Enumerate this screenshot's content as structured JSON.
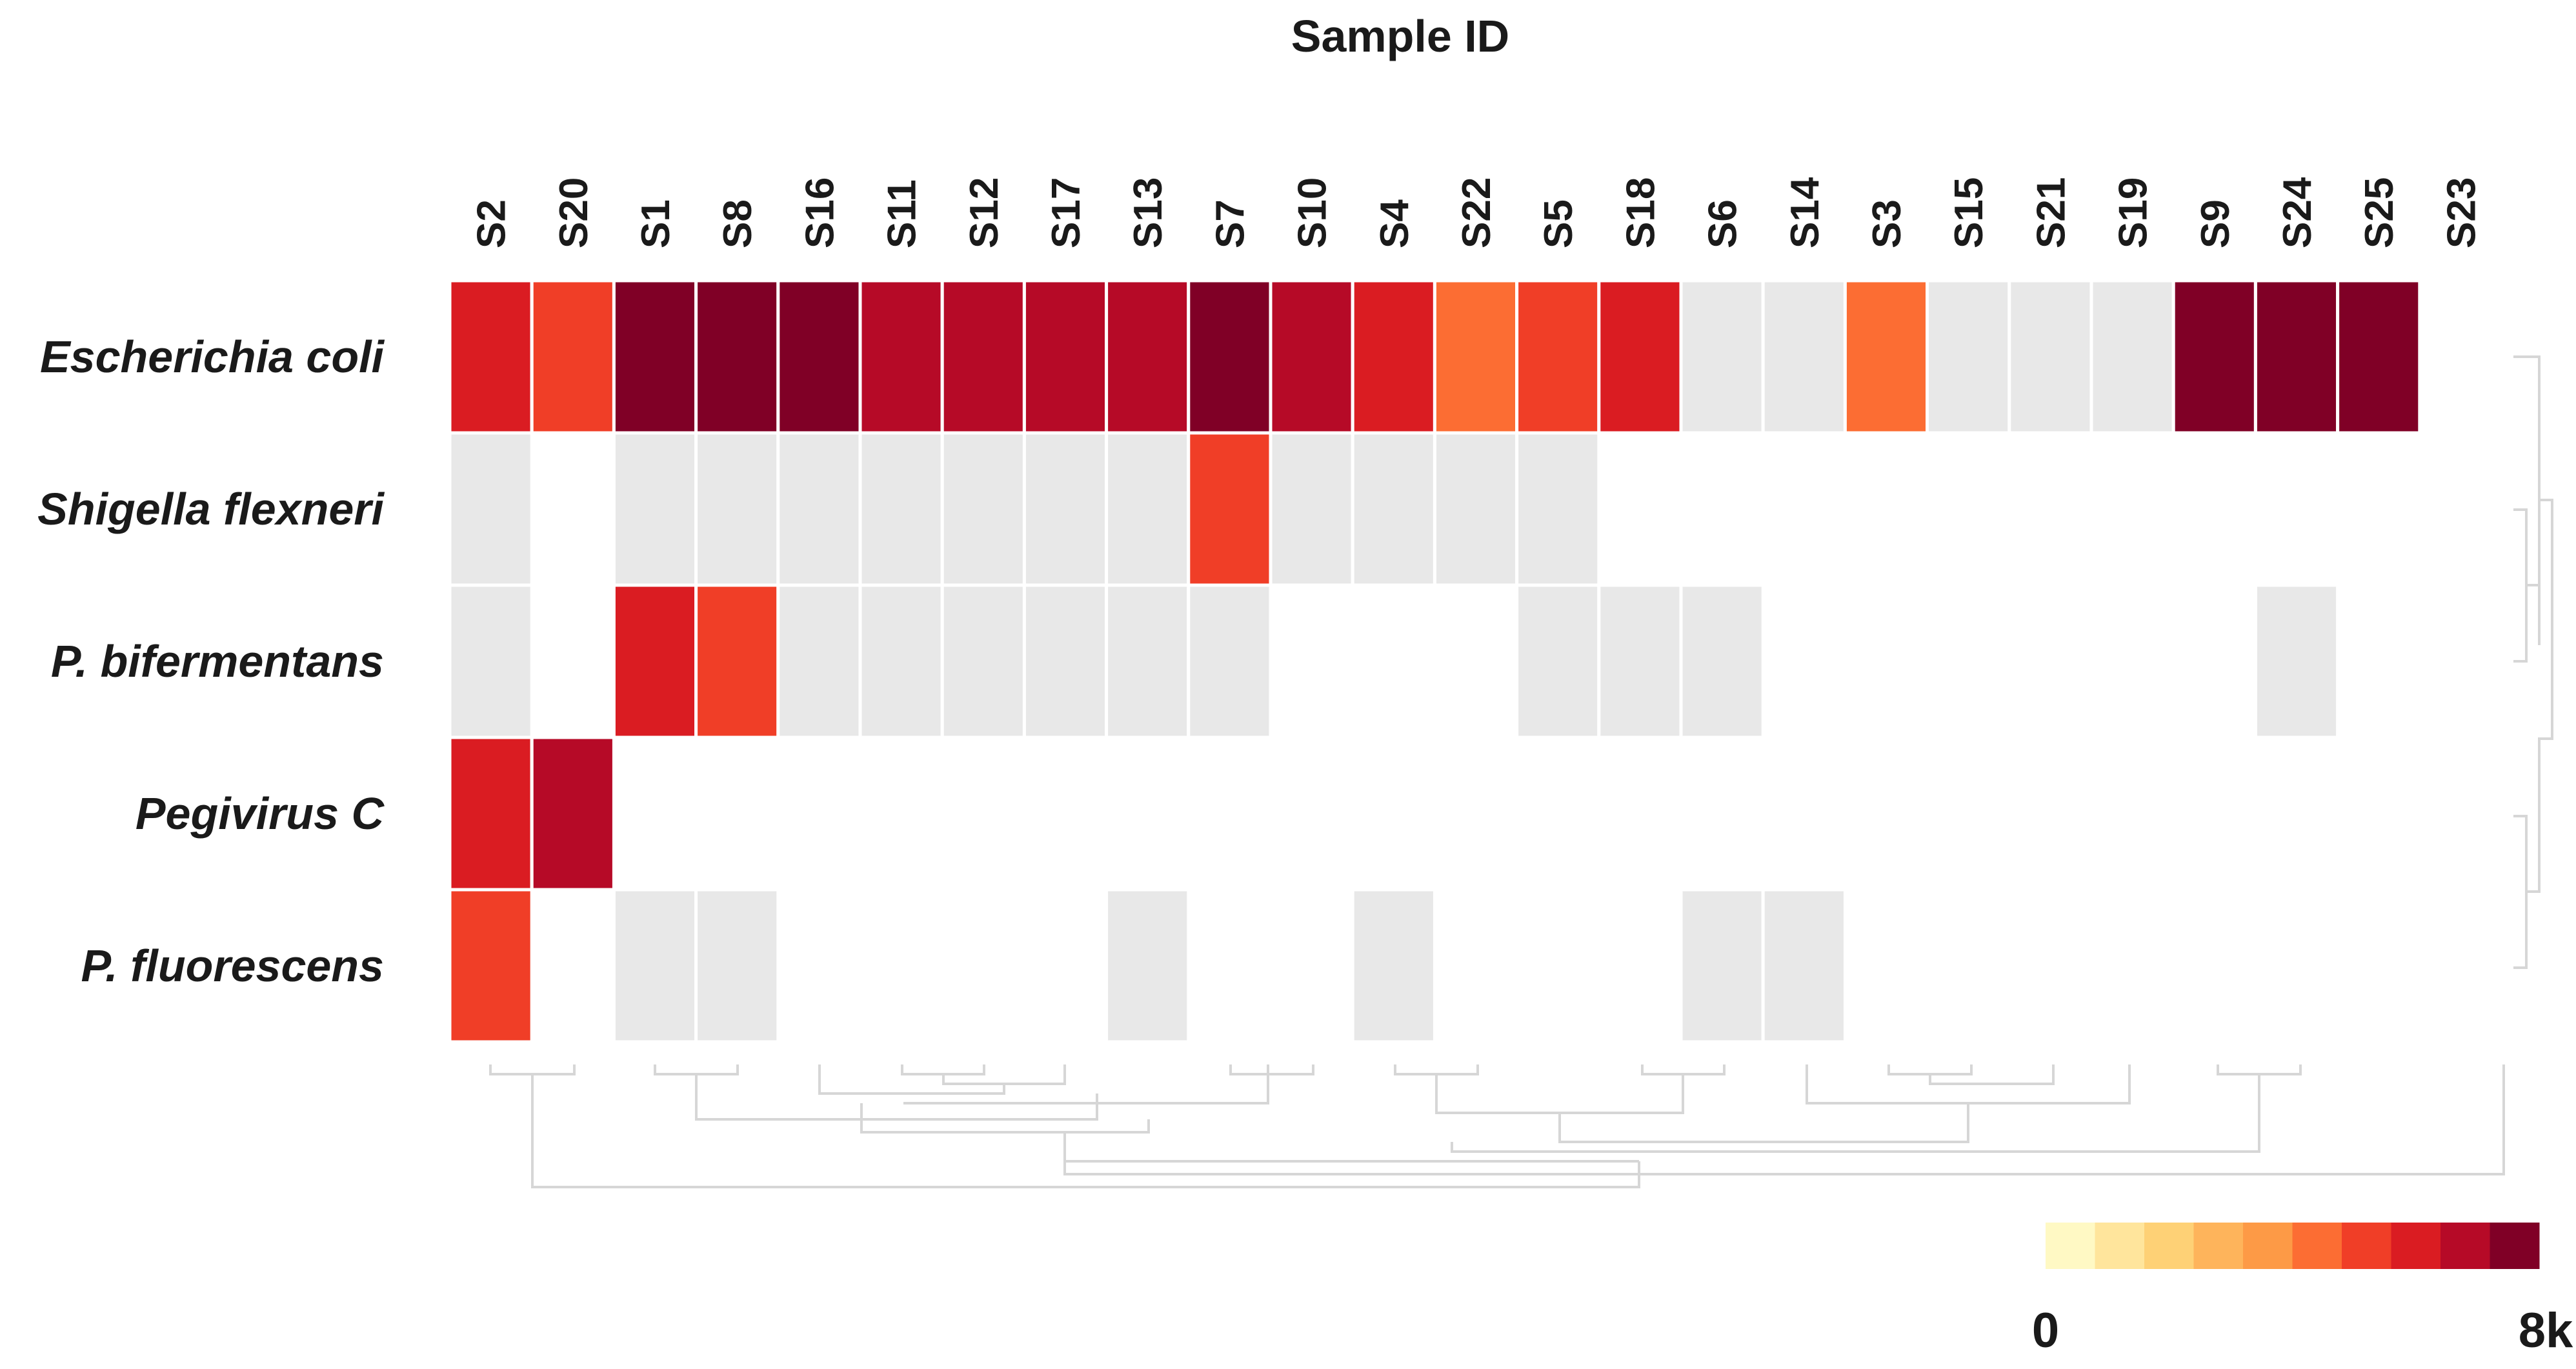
{
  "chart_data": {
    "type": "heatmap",
    "title": "Sample ID",
    "columns": [
      "S2",
      "S20",
      "S1",
      "S8",
      "S16",
      "S11",
      "S12",
      "S17",
      "S13",
      "S7",
      "S10",
      "S4",
      "S22",
      "S5",
      "S18",
      "S6",
      "S14",
      "S3",
      "S15",
      "S21",
      "S19",
      "S9",
      "S24",
      "S25",
      "S23"
    ],
    "rows": [
      "Escherichia  coli",
      "Shigella flexneri",
      "P. bifermentans",
      "Pegivirus C",
      "P. fluorescens"
    ],
    "values": [
      [
        5800,
        4800,
        7900,
        7900,
        7200,
        6600,
        6600,
        6600,
        6600,
        7900,
        6600,
        5800,
        4600,
        4800,
        5800,
        0,
        0,
        4000,
        0,
        0,
        0,
        7900,
        7200,
        7200,
        null
      ],
      [
        0,
        null,
        0,
        0,
        0,
        0,
        0,
        0,
        0,
        5000,
        0,
        0,
        0,
        0,
        null,
        null,
        null,
        null,
        null,
        null,
        null,
        null,
        null,
        null,
        null
      ],
      [
        0,
        null,
        5600,
        4800,
        0,
        0,
        0,
        0,
        0,
        0,
        null,
        null,
        null,
        0,
        0,
        0,
        null,
        null,
        null,
        null,
        null,
        null,
        0,
        null,
        null
      ],
      [
        5800,
        6600,
        null,
        null,
        null,
        null,
        null,
        null,
        null,
        null,
        null,
        null,
        null,
        null,
        null,
        null,
        null,
        null,
        null,
        null,
        null,
        null,
        null,
        null,
        null
      ],
      [
        4800,
        null,
        0,
        0,
        null,
        null,
        null,
        null,
        0,
        null,
        null,
        0,
        null,
        null,
        null,
        0,
        0,
        null,
        null,
        null,
        null,
        null,
        null,
        null,
        null
      ]
    ],
    "color_scale": {
      "min": 0,
      "max": 8000,
      "min_label": "0",
      "max_label": "8k",
      "zero_color": "#e8e8e8",
      "colors": [
        "#fff9c4",
        "#ffe59c",
        "#fed176",
        "#feb45b",
        "#fd9a46",
        "#fc6d33",
        "#f03e27",
        "#da1c22",
        "#b60a27",
        "#800026"
      ]
    },
    "legend_position": "bottom-right",
    "row_dendrogram": true,
    "column_dendrogram": true
  }
}
